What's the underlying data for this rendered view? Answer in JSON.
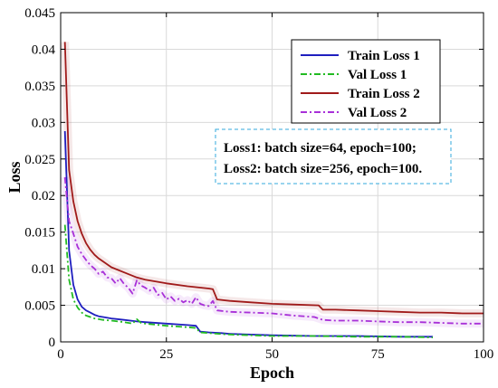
{
  "chart_data": {
    "type": "line",
    "xlabel": "Epoch",
    "ylabel": "Loss",
    "xlim": [
      0,
      100
    ],
    "ylim": [
      0,
      0.045
    ],
    "xticks": [
      0,
      25,
      50,
      75,
      100
    ],
    "yticks": [
      0,
      0.005,
      0.01,
      0.015,
      0.02,
      0.025,
      0.03,
      0.035,
      0.04,
      0.045
    ],
    "xtick_labels": [
      "0",
      "25",
      "50",
      "75",
      "100"
    ],
    "ytick_labels": [
      "0",
      "0.005",
      "0.01",
      "0.015",
      "0.02",
      "0.025",
      "0.03",
      "0.035",
      "0.04",
      "0.045"
    ],
    "grid": true,
    "legend_position": "top-right",
    "series": [
      {
        "name": "Train Loss 1",
        "color": "#1f1fbf",
        "style": "solid",
        "x": [
          1,
          2,
          3,
          4,
          5,
          6,
          7,
          8,
          9,
          10,
          12,
          15,
          18,
          20,
          25,
          30,
          32,
          33,
          35,
          38,
          40,
          45,
          50,
          60,
          70,
          80,
          88
        ],
        "y": [
          0.0288,
          0.0125,
          0.0078,
          0.0058,
          0.0048,
          0.0043,
          0.004,
          0.0037,
          0.0035,
          0.0034,
          0.0032,
          0.003,
          0.0028,
          0.0027,
          0.0025,
          0.0023,
          0.0022,
          0.0014,
          0.0013,
          0.0012,
          0.0011,
          0.001,
          0.0009,
          0.0008,
          0.0008,
          0.0007,
          0.0007
        ]
      },
      {
        "name": "Val Loss 1",
        "color": "#22bb22",
        "style": "dashdot",
        "x": [
          1,
          2,
          3,
          4,
          5,
          6,
          7,
          8,
          9,
          10,
          12,
          15,
          17,
          18,
          19,
          20,
          25,
          30,
          32,
          33,
          35,
          40,
          45,
          50,
          60,
          70,
          80,
          88
        ],
        "y": [
          0.016,
          0.0085,
          0.0058,
          0.0047,
          0.004,
          0.0036,
          0.0034,
          0.0032,
          0.0031,
          0.003,
          0.0029,
          0.0027,
          0.0025,
          0.0031,
          0.0026,
          0.0025,
          0.0022,
          0.002,
          0.0019,
          0.0013,
          0.0012,
          0.001,
          0.0009,
          0.0008,
          0.0008,
          0.0007,
          0.0007,
          0.0006
        ]
      },
      {
        "name": "Train Loss 2",
        "color": "#a01a1a",
        "style": "solid",
        "x": [
          1,
          2,
          3,
          4,
          5,
          6,
          7,
          8,
          9,
          10,
          12,
          15,
          18,
          20,
          25,
          30,
          35,
          36,
          37,
          40,
          45,
          50,
          55,
          61,
          62,
          65,
          70,
          75,
          80,
          85,
          90,
          95,
          100
        ],
        "y": [
          0.041,
          0.0235,
          0.0192,
          0.0165,
          0.0148,
          0.0135,
          0.0126,
          0.0119,
          0.0114,
          0.011,
          0.0102,
          0.0095,
          0.0088,
          0.0085,
          0.008,
          0.0076,
          0.0073,
          0.0072,
          0.0058,
          0.0056,
          0.0054,
          0.0052,
          0.0051,
          0.005,
          0.0044,
          0.0044,
          0.0043,
          0.0042,
          0.0041,
          0.004,
          0.004,
          0.0039,
          0.0039
        ]
      },
      {
        "name": "Val Loss 2",
        "color": "#a830d8",
        "style": "dashdot",
        "x": [
          1,
          2,
          3,
          4,
          5,
          6,
          7,
          8,
          9,
          10,
          11,
          12,
          13,
          14,
          15,
          16,
          17,
          18,
          19,
          20,
          21,
          22,
          23,
          24,
          25,
          26,
          27,
          28,
          29,
          30,
          31,
          32,
          33,
          34,
          35,
          36,
          37,
          40,
          45,
          50,
          55,
          60,
          62,
          65,
          70,
          75,
          80,
          85,
          90,
          95,
          100
        ],
        "y": [
          0.0225,
          0.0165,
          0.0148,
          0.013,
          0.012,
          0.0112,
          0.0105,
          0.01,
          0.0093,
          0.0096,
          0.0088,
          0.0087,
          0.008,
          0.0087,
          0.0079,
          0.0074,
          0.0066,
          0.0084,
          0.0077,
          0.0074,
          0.007,
          0.0074,
          0.0064,
          0.0067,
          0.0058,
          0.0062,
          0.0056,
          0.0059,
          0.0054,
          0.0057,
          0.0052,
          0.0061,
          0.0052,
          0.005,
          0.0049,
          0.0056,
          0.0043,
          0.0041,
          0.004,
          0.0039,
          0.0036,
          0.0034,
          0.003,
          0.0029,
          0.0029,
          0.0028,
          0.0027,
          0.0027,
          0.0026,
          0.0025,
          0.0025
        ]
      }
    ],
    "annotation": {
      "lines": [
        "Loss1: batch size=64,   epoch=100;",
        "Loss2: batch size=256, epoch=100."
      ],
      "border_color": "#33aadd"
    }
  }
}
